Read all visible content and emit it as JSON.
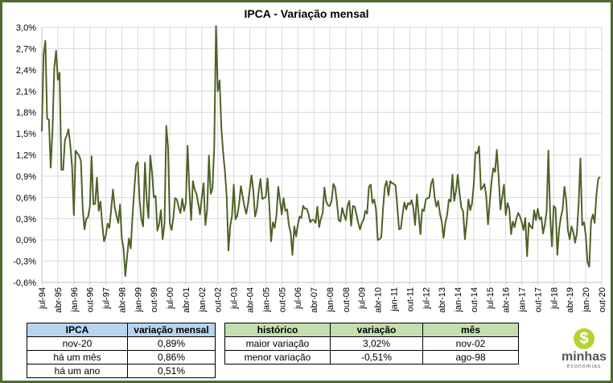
{
  "chart_data": {
    "type": "line",
    "title": "IPCA - Variação mensal",
    "xlabel": "",
    "ylabel": "",
    "ylim": [
      -0.6,
      3.0
    ],
    "y_ticks": [
      "3,0%",
      "2,7%",
      "2,4%",
      "2,1%",
      "1,8%",
      "1,5%",
      "1,2%",
      "0,9%",
      "0,6%",
      "0,3%",
      "0,0%",
      "-0,3%",
      "-0,6%"
    ],
    "x_ticks": [
      "jul-94",
      "abr-95",
      "jan-96",
      "out-96",
      "jul-97",
      "abr-98",
      "jan-99",
      "out-99",
      "jul-00",
      "abr-01",
      "jan-02",
      "out-02",
      "jul-03",
      "abr-04",
      "jan-05",
      "out-05",
      "jul-06",
      "abr-07",
      "jan-08",
      "out-08",
      "jul-09",
      "abr-10",
      "jan-11",
      "out-11",
      "jul-12",
      "abr-13",
      "jan-14",
      "out-14",
      "jul-15",
      "abr-16",
      "jan-17",
      "out-17",
      "jul-18",
      "abr-19",
      "jan-20",
      "out-20"
    ],
    "grid": true,
    "line_color": "#4f6228",
    "values": [
      1.53,
      2.62,
      2.81,
      1.71,
      1.7,
      1.02,
      1.55,
      2.43,
      2.67,
      2.26,
      2.36,
      0.99,
      0.99,
      1.41,
      1.47,
      1.56,
      1.34,
      1.03,
      0.35,
      1.26,
      1.22,
      1.19,
      1.11,
      0.44,
      0.15,
      0.3,
      0.32,
      0.47,
      1.18,
      0.5,
      0.51,
      0.88,
      0.41,
      0.54,
      0.22,
      -0.02,
      0.06,
      0.23,
      0.17,
      0.43,
      0.71,
      0.46,
      0.34,
      0.24,
      0.5,
      0.02,
      -0.12,
      -0.51,
      -0.22,
      0.02,
      -0.12,
      0.33,
      0.7,
      1.05,
      1.1,
      0.56,
      0.3,
      0.19,
      1.09,
      0.56,
      0.31,
      1.19,
      0.95,
      0.6,
      0.62,
      0.13,
      0.22,
      0.42,
      0.01,
      0.23,
      1.61,
      1.31,
      0.23,
      0.14,
      0.32,
      0.59,
      0.57,
      0.46,
      0.38,
      0.58,
      0.41,
      0.52,
      1.33,
      0.7,
      0.28,
      0.83,
      0.71,
      0.65,
      0.52,
      0.36,
      0.6,
      0.8,
      0.21,
      0.42,
      1.19,
      0.65,
      0.72,
      1.31,
      3.02,
      2.1,
      2.25,
      1.57,
      1.23,
      0.97,
      0.61,
      -0.15,
      0.2,
      0.34,
      0.78,
      0.29,
      0.34,
      0.52,
      0.76,
      0.61,
      0.47,
      0.37,
      0.51,
      0.71,
      0.91,
      0.69,
      0.33,
      0.44,
      0.69,
      0.86,
      0.58,
      0.59,
      0.61,
      0.87,
      0.49,
      -0.02,
      0.25,
      0.17,
      0.35,
      0.75,
      0.55,
      0.36,
      0.59,
      0.41,
      0.43,
      0.21,
      0.1,
      -0.21,
      0.19,
      0.05,
      0.21,
      0.33,
      0.31,
      0.48,
      0.44,
      0.44,
      0.37,
      0.25,
      0.28,
      0.28,
      0.24,
      0.47,
      0.18,
      0.3,
      0.38,
      0.74,
      0.54,
      0.49,
      0.48,
      0.55,
      0.79,
      0.74,
      0.53,
      0.28,
      0.26,
      0.45,
      0.36,
      0.28,
      0.48,
      0.55,
      0.2,
      0.48,
      0.47,
      0.36,
      0.24,
      0.15,
      0.24,
      0.28,
      0.41,
      0.37,
      0.75,
      0.78,
      0.52,
      0.57,
      0.43,
      0.0,
      0.01,
      0.04,
      0.45,
      0.75,
      0.83,
      0.63,
      0.83,
      0.8,
      0.79,
      0.77,
      0.47,
      0.15,
      0.16,
      0.37,
      0.53,
      0.43,
      0.52,
      0.5,
      0.56,
      0.45,
      0.21,
      0.64,
      0.36,
      0.08,
      0.43,
      0.41,
      0.57,
      0.59,
      0.6,
      0.79,
      0.86,
      0.6,
      0.47,
      0.55,
      0.37,
      0.26,
      0.03,
      0.24,
      0.35,
      0.57,
      0.54,
      0.92,
      0.55,
      0.69,
      0.92,
      0.67,
      0.46,
      0.4,
      0.01,
      0.25,
      0.57,
      0.42,
      0.51,
      0.78,
      1.24,
      1.22,
      1.32,
      0.71,
      0.74,
      0.79,
      0.62,
      0.22,
      0.54,
      0.82,
      1.01,
      0.96,
      1.27,
      0.9,
      0.43,
      0.61,
      0.78,
      0.35,
      0.52,
      0.44,
      0.08,
      0.26,
      0.18,
      0.3,
      0.38,
      0.33,
      0.25,
      0.14,
      0.31,
      -0.23,
      0.24,
      0.19,
      0.16,
      0.42,
      0.28,
      0.44,
      0.29,
      0.32,
      0.09,
      0.22,
      0.4,
      1.26,
      0.33,
      -0.09,
      0.48,
      0.45,
      -0.21,
      0.15,
      0.32,
      0.43,
      0.75,
      0.57,
      0.13,
      0.01,
      0.19,
      0.11,
      -0.04,
      0.1,
      0.51,
      1.15,
      0.21,
      0.25,
      0.07,
      -0.31,
      -0.38,
      0.26,
      0.36,
      0.24,
      0.64,
      0.86,
      0.89
    ]
  },
  "table_current": {
    "headers": [
      "IPCA",
      "variação mensal"
    ],
    "rows": [
      [
        "nov-20",
        "0,89%"
      ],
      [
        "há um mês",
        "0,86%"
      ],
      [
        "há um ano",
        "0,51%"
      ]
    ]
  },
  "table_history": {
    "headers": [
      "histórico",
      "variação",
      "mês"
    ],
    "rows": [
      [
        "maior variação",
        "3,02%",
        "nov-02"
      ],
      [
        "menor variação",
        "-0,51%",
        "ago-98"
      ]
    ]
  },
  "logo": {
    "symbol": "$",
    "name": "minhas",
    "sub": "economias",
    "color": "#b5d334"
  }
}
